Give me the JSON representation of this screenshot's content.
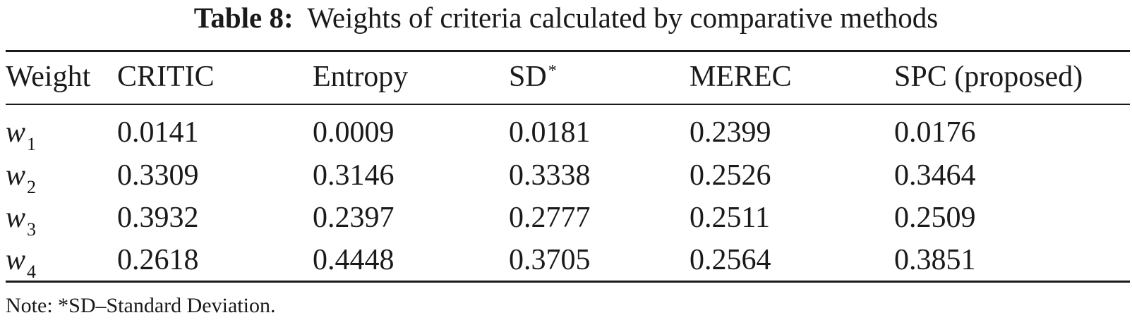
{
  "caption": {
    "label": "Table 8:",
    "text": "Weights of criteria calculated by comparative methods"
  },
  "table": {
    "headers": [
      "Weight",
      "CRITIC",
      "Entropy",
      "SD",
      "MEREC",
      "SPC (proposed)"
    ],
    "sd_marker": "*",
    "rows": [
      {
        "var": "w",
        "sub": "1",
        "values": [
          "0.0141",
          "0.0009",
          "0.0181",
          "0.2399",
          "0.0176"
        ]
      },
      {
        "var": "w",
        "sub": "2",
        "values": [
          "0.3309",
          "0.3146",
          "0.3338",
          "0.2526",
          "0.3464"
        ]
      },
      {
        "var": "w",
        "sub": "3",
        "values": [
          "0.3932",
          "0.2397",
          "0.2777",
          "0.2511",
          "0.2509"
        ]
      },
      {
        "var": "w",
        "sub": "4",
        "values": [
          "0.2618",
          "0.4448",
          "0.3705",
          "0.2564",
          "0.3851"
        ]
      }
    ]
  },
  "note": "Note: *SD–Standard Deviation."
}
